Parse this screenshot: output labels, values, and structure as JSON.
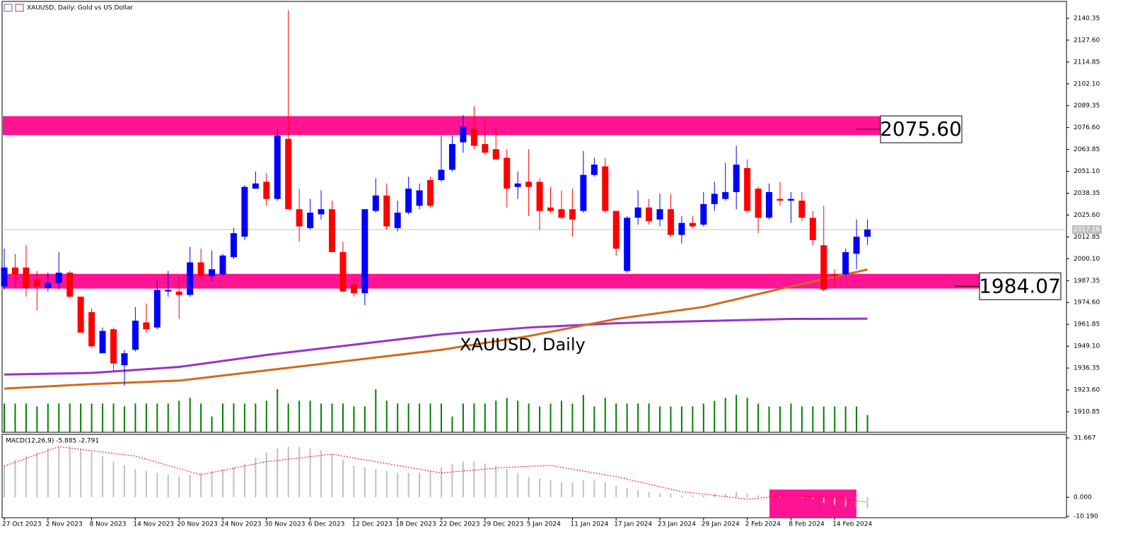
{
  "chart_data": [
    {
      "type": "candlestick",
      "title": "XAUUSD, Daily: Gold vs US Dollar",
      "annotation": "XAUUSD, Daily",
      "categories": [
        "27 Oct 2023",
        null,
        null,
        null,
        "2 Nov 2023",
        null,
        null,
        null,
        "8 Nov 2023",
        null,
        null,
        null,
        "14 Nov 2023",
        null,
        null,
        null,
        "20 Nov 2023",
        null,
        null,
        null,
        "24 Nov 2023",
        null,
        null,
        null,
        "30 Nov 2023",
        null,
        null,
        null,
        "6 Dec 2023",
        null,
        null,
        null,
        "12 Dec 2023",
        null,
        null,
        null,
        "18 Dec 2023",
        null,
        null,
        null,
        "22 Dec 2023",
        null,
        null,
        null,
        "29 Dec 2023",
        null,
        null,
        null,
        "5 Jan 2024",
        null,
        null,
        null,
        "11 Jan 2024",
        null,
        null,
        null,
        "17 Jan 2024",
        null,
        null,
        null,
        "23 Jan 2024",
        null,
        null,
        null,
        "29 Jan 2024",
        null,
        null,
        null,
        "2 Feb 2024",
        null,
        null,
        null,
        "8 Feb 2024",
        null,
        null,
        null,
        "14 Feb 2024",
        null,
        null,
        null
      ],
      "open": [
        1984,
        1995,
        1995,
        1988,
        1983,
        1986,
        1992,
        1978,
        1969,
        1945,
        1959,
        1938,
        1947,
        1963,
        1960,
        1981,
        1981,
        1979,
        1998,
        1990,
        1991,
        2001,
        2013,
        2041,
        2045,
        2035,
        2070,
        2029,
        2018,
        2026,
        2029,
        2004,
        1985,
        1980,
        2028,
        2037,
        2018,
        2027,
        2031,
        2046,
        2046,
        2052,
        2068,
        2076,
        2067,
        2064,
        2059,
        2042,
        2045,
        2045,
        2030,
        2029,
        2029,
        2028,
        2049,
        2054,
        2028,
        1993,
        2024,
        2030,
        2023,
        2029,
        2014,
        2021,
        2020,
        2032,
        2035,
        2039,
        2053,
        2041,
        2024,
        2035,
        2034,
        2034,
        2024,
        2008,
        1991,
        1991,
        2003,
        2013
      ],
      "high": [
        2006,
        2003,
        2008,
        1993,
        1992,
        2004,
        1993,
        1978,
        1971,
        1960,
        1960,
        1947,
        1972,
        1974,
        1988,
        1993,
        1990,
        2007,
        2006,
        2005,
        2003,
        2018,
        2043,
        2051,
        2050,
        2076,
        2145,
        2041,
        2035,
        2040,
        2034,
        2010,
        1988,
        2029,
        2047,
        2044,
        2034,
        2048,
        2044,
        2048,
        2072,
        2072,
        2084,
        2089,
        2082,
        2078,
        2064,
        2051,
        2064,
        2047,
        2042,
        2040,
        2041,
        2063,
        2059,
        2059,
        2028,
        2025,
        2040,
        2035,
        2038,
        2038,
        2025,
        2025,
        2039,
        2045,
        2056,
        2066,
        2058,
        2042,
        2044,
        2045,
        2039,
        2039,
        2028,
        2031,
        1994,
        2006,
        2023,
        2023
      ],
      "low": [
        1982,
        1984,
        1978,
        1970,
        1981,
        1982,
        1977,
        1957,
        1948,
        1945,
        1935,
        1926,
        1946,
        1957,
        1959,
        1978,
        1965,
        1978,
        1988,
        1987,
        1990,
        2000,
        2011,
        2041,
        2031,
        2034,
        2029,
        2010,
        2017,
        2023,
        2004,
        1981,
        1978,
        1973,
        2027,
        2017,
        2016,
        2026,
        2029,
        2030,
        2045,
        2051,
        2062,
        2064,
        2061,
        2058,
        2030,
        2035,
        2025,
        2017,
        2027,
        2023,
        2013,
        2027,
        2048,
        2027,
        2002,
        1992,
        2020,
        2020,
        2019,
        2013,
        2009,
        2018,
        2019,
        2028,
        2034,
        2029,
        2027,
        2015,
        2023,
        2031,
        2021,
        2022,
        2008,
        1981,
        1984,
        1990,
        1994,
        2008
      ],
      "close": [
        1995,
        1991,
        1983,
        1984,
        1986,
        1992,
        1978,
        1957,
        1949,
        1958,
        1939,
        1945,
        1964,
        1959,
        1982,
        1982,
        1979,
        1998,
        1990,
        1994,
        2002,
        2015,
        2042,
        2044,
        2035,
        2072,
        2029,
        2019,
        2027,
        2029,
        2004,
        1981,
        1980,
        2029,
        2037,
        2019,
        2027,
        2041,
        2040,
        2031,
        2052,
        2067,
        2077,
        2066,
        2062,
        2058,
        2041,
        2044,
        2042,
        2028,
        2028,
        2024,
        2023,
        2049,
        2055,
        2028,
        2006,
        2024,
        2030,
        2022,
        2029,
        2014,
        2021,
        2019,
        2032,
        2038,
        2039,
        2055,
        2028,
        2024,
        2039,
        2034,
        2035,
        2024,
        2011,
        1982,
        1990,
        2004,
        2013,
        2017.16
      ],
      "up_color": "#0000ff",
      "down_color": "#ff0000",
      "ylim": [
        1898.9,
        2150.2
      ],
      "yticks": [
        2140.35,
        {
          "value": 2127.6,
          "label": "2127.60"
        },
        2114.85,
        {
          "value": 2102.1,
          "label": "2102.10"
        },
        2089.35,
        {
          "value": 2076.6,
          "label": "2076.60"
        },
        2063.85,
        {
          "value": 2051.1,
          "label": "2051.10"
        },
        2038.35,
        {
          "value": 2025.6,
          "label": "2025.60"
        },
        2012.85,
        {
          "value": 2000.1,
          "label": "2000.10"
        },
        1987.35,
        {
          "value": 1974.6,
          "label": "1974.60"
        },
        1961.85,
        {
          "value": 1949.1,
          "label": "1949.10"
        },
        1936.35,
        {
          "value": 1923.6,
          "label": "1923.60"
        },
        1910.85
      ],
      "current_price": 2017.16,
      "zones": [
        {
          "high": 2083.3,
          "low": 2072.2,
          "color": "#ff1493",
          "label": {
            "value": 2075.6,
            "label": "2075.60"
          }
        },
        {
          "high": 1991.3,
          "low": 1982.7,
          "color": "#ff1493",
          "label": 1984.07
        }
      ],
      "series": [
        {
          "color": "#9932cc",
          "x": [
            0,
            8,
            16,
            24,
            32,
            40,
            48,
            56,
            64,
            72,
            79
          ],
          "values": [
            1932.6,
            1933.5,
            1937,
            1944,
            1950,
            1956,
            1960,
            1962.5,
            1963.8,
            1965,
            1965.2
          ]
        },
        {
          "color": "#d2691e",
          "x": [
            0,
            8,
            16,
            24,
            32,
            40,
            48,
            56,
            64,
            72,
            79
          ],
          "values": [
            1924.4,
            1927,
            1929,
            1935,
            1941,
            1947,
            1955,
            1965,
            1972,
            1984,
            1993.8
          ]
        }
      ],
      "volume": {
        "color": "#008000",
        "ylim": [
          0,
          150
        ],
        "values": [
          10,
          10,
          10,
          9,
          10,
          10,
          10,
          10,
          10,
          10,
          10,
          9,
          10,
          10,
          10,
          10,
          11,
          12,
          10,
          5.5,
          10,
          10,
          10,
          10,
          11,
          15,
          10,
          11,
          11,
          10,
          10,
          10,
          9,
          9,
          15,
          11,
          10,
          10,
          10,
          10,
          10,
          5.5,
          10,
          10,
          10,
          11,
          12,
          11,
          10,
          9,
          10,
          11,
          10,
          13,
          9,
          12,
          10,
          10,
          10,
          10,
          9,
          9,
          9,
          9,
          10,
          11,
          12,
          13,
          12,
          10,
          9,
          9,
          10,
          9,
          9,
          9,
          9,
          9,
          9,
          6
        ]
      }
    },
    {
      "type": "macd",
      "title": "MACD(12,26,9) -5.885 -2.791",
      "ylim": [
        -10.93,
        33.55
      ],
      "yticks": [
        31.667,
        {
          "value": 0,
          "label": "0.000"
        },
        {
          "value": -10.19,
          "label": "-10.190"
        }
      ],
      "histogram": {
        "color": "#c0c0c0",
        "values": [
          17,
          20,
          22,
          24,
          26,
          27,
          27,
          26,
          24,
          22,
          19,
          17,
          15,
          14,
          13,
          12,
          11,
          12,
          13,
          14,
          15,
          16,
          18,
          21,
          24,
          26,
          27,
          27,
          26,
          25,
          23,
          20,
          17,
          16,
          15,
          14,
          13,
          13,
          13,
          14,
          16,
          18,
          19,
          19,
          18,
          17,
          15,
          13,
          11,
          10,
          9,
          8,
          8,
          9,
          9,
          8,
          6,
          5,
          4,
          3,
          2,
          2,
          1,
          1,
          1,
          2,
          2,
          3,
          2,
          1,
          1,
          0.5,
          0,
          -0.5,
          -1,
          -3,
          -4,
          -5,
          -5.5,
          -5.885
        ]
      },
      "signal": {
        "color": "#ff0000",
        "x": [
          0,
          5,
          12,
          18,
          24,
          30,
          36,
          40,
          46,
          50,
          56,
          62,
          68,
          72,
          76,
          79
        ],
        "values": [
          16.6,
          27,
          22,
          12,
          19,
          23,
          17,
          13,
          16,
          17,
          11,
          3,
          -1,
          1,
          0,
          -2.791
        ]
      },
      "zone": {
        "high": 4.1,
        "low": -10.9,
        "color": "#ff1493"
      }
    }
  ]
}
